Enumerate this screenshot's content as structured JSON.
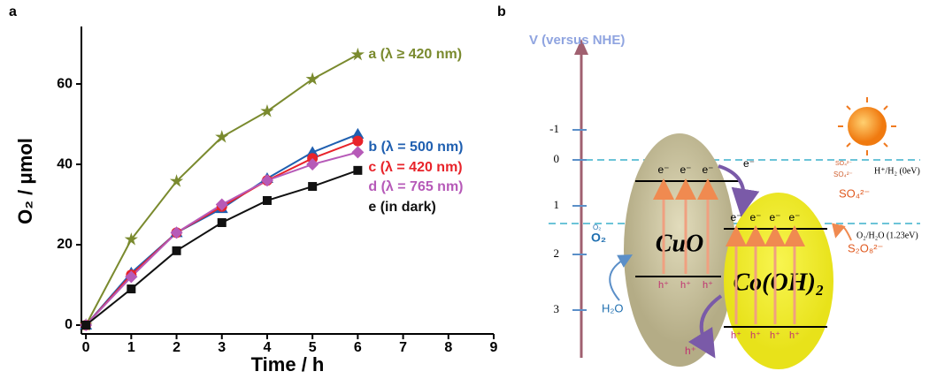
{
  "panel_labels": [
    "a",
    "b"
  ],
  "chart_data": {
    "type": "line",
    "xlabel": "Time / h",
    "ylabel": "O₂ / μmol",
    "x": [
      0,
      1,
      2,
      3,
      4,
      5,
      6
    ],
    "series": [
      {
        "name": "a (λ ≥ 420 nm)",
        "color": "#7a8a2e",
        "marker": "star",
        "values": [
          0,
          21.3,
          35.8,
          46.8,
          53.2,
          61.2,
          67.3
        ]
      },
      {
        "name": "b (λ = 500 nm)",
        "color": "#1f5fb0",
        "marker": "triangle",
        "values": [
          0,
          13,
          23,
          29,
          36.5,
          43,
          47.5
        ]
      },
      {
        "name": "c (λ = 420 nm)",
        "color": "#e8232a",
        "marker": "circle",
        "values": [
          0,
          12.5,
          23,
          29.5,
          36,
          41.5,
          45.8
        ]
      },
      {
        "name": "d (λ = 765 nm)",
        "color": "#b65ab8",
        "marker": "diamond",
        "values": [
          0,
          12,
          23,
          30,
          36,
          40,
          43
        ]
      },
      {
        "name": "e (in dark)",
        "color": "#111111",
        "marker": "square",
        "values": [
          0,
          9,
          18.5,
          25.5,
          31,
          34.5,
          38.5
        ]
      }
    ],
    "xlim": [
      -0.1,
      9
    ],
    "ylim": [
      -2.2,
      74.3
    ],
    "xticks": [
      0,
      1,
      2,
      3,
      4,
      5,
      6,
      7,
      8,
      9
    ],
    "yticks": [
      0,
      20,
      40,
      60
    ]
  },
  "diagram": {
    "axis_title": "V (versus NHE)",
    "axis_ticks": [
      "-1",
      "0",
      "1",
      "2",
      "3"
    ],
    "levels": [
      "H⁺/H₂ (0eV)",
      "O₂/H₂O (1.23eV)"
    ],
    "cuo": {
      "label": "CuO",
      "electrons": [
        "e⁻",
        "e⁻",
        "e⁻"
      ],
      "holes": [
        "h⁺",
        "h⁺",
        "h⁺"
      ]
    },
    "cooh": {
      "label": "Co(OH)₂",
      "electrons": [
        "e⁻",
        "e⁻",
        "e⁻",
        "e⁻"
      ],
      "holes": [
        "h⁺",
        "h⁺",
        "h⁺",
        "h⁺"
      ]
    },
    "transfer": {
      "electron": "e⁻",
      "hole": "h⁺"
    },
    "species": {
      "o2": "O₂",
      "o2_small": "O₂",
      "h2o": "H₂O",
      "so4_small": [
        "SO₄²⁻",
        "SO₄²⁻"
      ],
      "so4": "SO₄²⁻",
      "s2o8": "S₂O₈²⁻"
    }
  }
}
